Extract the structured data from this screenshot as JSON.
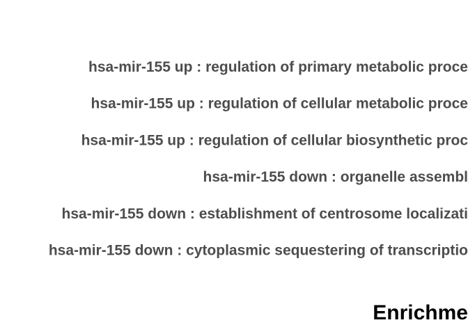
{
  "chart_data": {
    "type": "bar",
    "title": "",
    "xlabel": "Enrichme",
    "ylabel": "",
    "categories": [
      "hsa-mir-155 up : regulation of primary metabolic proce",
      "hsa-mir-155 up : regulation of cellular metabolic proce",
      "hsa-mir-155 up : regulation of cellular biosynthetic proc",
      "hsa-mir-155 down : organelle assembl",
      "hsa-mir-155 down : establishment of centrosome localizati",
      "hsa-mir-155 down : cytoplasmic sequestering of transcriptio"
    ],
    "series": [],
    "colors": {
      "label": "#4d4d4d",
      "axis_title": "#000000",
      "background": "#ffffff"
    }
  }
}
